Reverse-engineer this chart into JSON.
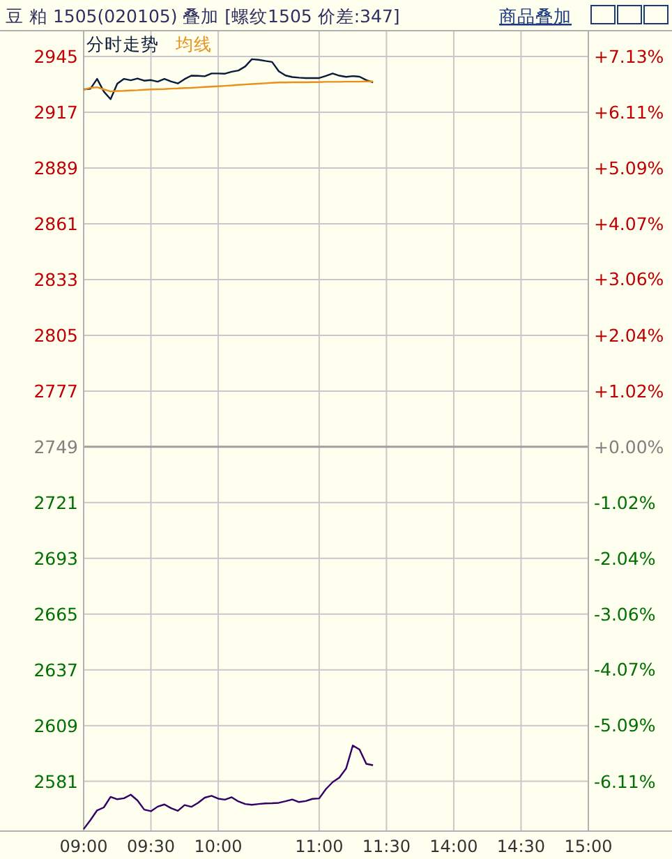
{
  "chart_data": {
    "type": "line",
    "title": "豆 粕 1505(020105) 叠加 [螺纹1505 价差:347]",
    "annotations": [
      "商品叠加"
    ],
    "categories": [
      "09:00",
      null,
      null,
      null,
      null,
      null,
      null,
      null,
      null,
      null,
      "09:30",
      null,
      null,
      null,
      null,
      null,
      null,
      null,
      null,
      null,
      "10:00",
      null,
      null,
      null,
      null,
      null,
      null,
      null,
      null,
      null,
      null,
      null,
      null,
      null,
      null,
      "11:00",
      null,
      null,
      null,
      null,
      null,
      null,
      null,
      null,
      null,
      "11:30",
      null,
      null,
      null,
      null,
      null,
      null,
      null,
      null,
      null,
      "14:00",
      null,
      null,
      null,
      null,
      null,
      null,
      null,
      null,
      null,
      "14:30",
      null,
      null,
      null,
      null,
      null,
      null,
      null,
      null,
      null,
      "15:00"
    ],
    "ylim": [
      2556,
      2958
    ],
    "yticks": [
      2945,
      2917,
      2889,
      2861,
      2833,
      2805,
      2777,
      2749,
      2721,
      2693,
      2665,
      2637,
      2609,
      2581
    ],
    "y2lim": [
      -7.02,
      7.6
    ],
    "y2ticks": [
      {
        "value": 7.13,
        "label": "+7.13%"
      },
      {
        "value": 6.11,
        "label": "+6.11%"
      },
      {
        "value": 5.09,
        "label": "+5.09%"
      },
      {
        "value": 4.07,
        "label": "+4.07%"
      },
      {
        "value": 3.06,
        "label": "+3.06%"
      },
      {
        "value": 2.04,
        "label": "+2.04%"
      },
      {
        "value": 1.02,
        "label": "+1.02%"
      },
      {
        "value": 0,
        "label": "+0.00%"
      },
      {
        "value": -1.02,
        "label": "-1.02%"
      },
      {
        "value": -2.04,
        "label": "-2.04%"
      },
      {
        "value": -3.06,
        "label": "-3.06%"
      },
      {
        "value": -4.07,
        "label": "-4.07%"
      },
      {
        "value": -5.09,
        "label": "-5.09%"
      },
      {
        "value": -6.11,
        "label": "-6.11%"
      }
    ],
    "grid": true,
    "legend": "top left",
    "ref_lines": [
      {
        "axis": "y",
        "value": 2749,
        "color": "#a0a0a0"
      }
    ],
    "series": [
      {
        "name": "分时走势",
        "color": "#0a1a3a",
        "values": [
          2928.5,
          2928.8,
          2933.8,
          2927.4,
          2923.6,
          2931.4,
          2933.8,
          2933.1,
          2934,
          2932.9,
          2933.2,
          2932.4,
          2933.8,
          2932.5,
          2931.5,
          2933.7,
          2935.4,
          2935.3,
          2935.1,
          2936.5,
          2936.5,
          2936.4,
          2937.4,
          2938,
          2940,
          2943.7,
          2943.4,
          2942.8,
          2942.3,
          2937.6,
          2935.5,
          2934.7,
          2934.4,
          2934.2,
          2934.2,
          2934.2,
          2935.3,
          2936.5,
          2935.4,
          2934.8,
          2935.2,
          2934.9,
          2933.2,
          2932,
          null,
          null,
          null,
          null,
          null,
          null,
          null,
          null,
          null,
          null,
          null,
          null,
          null,
          null,
          null,
          null,
          null,
          null,
          null,
          null,
          null,
          null,
          null,
          null,
          null,
          null,
          null,
          null,
          null,
          null,
          null,
          null
        ]
      },
      {
        "name": "均线",
        "color": "#e8901a",
        "values": [
          2928.3,
          2929.3,
          2929.6,
          2928.5,
          2927.5,
          2927.7,
          2927.8,
          2928,
          2928.1,
          2928.3,
          2928.5,
          2928.6,
          2928.7,
          2928.9,
          2929,
          2929.2,
          2929.3,
          2929.5,
          2929.7,
          2929.9,
          2930.1,
          2930.3,
          2930.5,
          2930.8,
          2931,
          2931.2,
          2931.4,
          2931.6,
          2931.8,
          2932,
          2932,
          2932.1,
          2932.1,
          2932.1,
          2932.2,
          2932.2,
          2932.3,
          2932.3,
          2932.3,
          2932.4,
          2932.4,
          2932.4,
          2932.5,
          2932.5,
          null,
          null,
          null,
          null,
          null,
          null,
          null,
          null,
          null,
          null,
          null,
          null,
          null,
          null,
          null,
          null,
          null,
          null,
          null,
          null,
          null,
          null,
          null,
          null,
          null,
          null,
          null,
          null,
          null,
          null,
          null,
          null
        ]
      },
      {
        "color": "#330066",
        "values": [
          2557,
          2561.5,
          2566.4,
          2567.9,
          2573.2,
          2572,
          2572.5,
          2574.3,
          2571.4,
          2566.8,
          2566,
          2568.3,
          2569.4,
          2567.5,
          2566.2,
          2569.1,
          2568.2,
          2570.2,
          2572.8,
          2573.7,
          2572.3,
          2571.8,
          2573,
          2570.9,
          2569.6,
          2569.2,
          2569.6,
          2569.9,
          2570,
          2570.2,
          2571,
          2571.9,
          2570.6,
          2571.1,
          2572.2,
          2572.4,
          2577.1,
          2580.6,
          2582.9,
          2587.4,
          2599,
          2597,
          2589.8,
          2589.1,
          null,
          null,
          null,
          null,
          null,
          null,
          null,
          null,
          null,
          null,
          null,
          null,
          null,
          null,
          null,
          null,
          null,
          null,
          null,
          null,
          null,
          null,
          null,
          null,
          null,
          null,
          null,
          null,
          null,
          null,
          null,
          null
        ]
      }
    ]
  }
}
